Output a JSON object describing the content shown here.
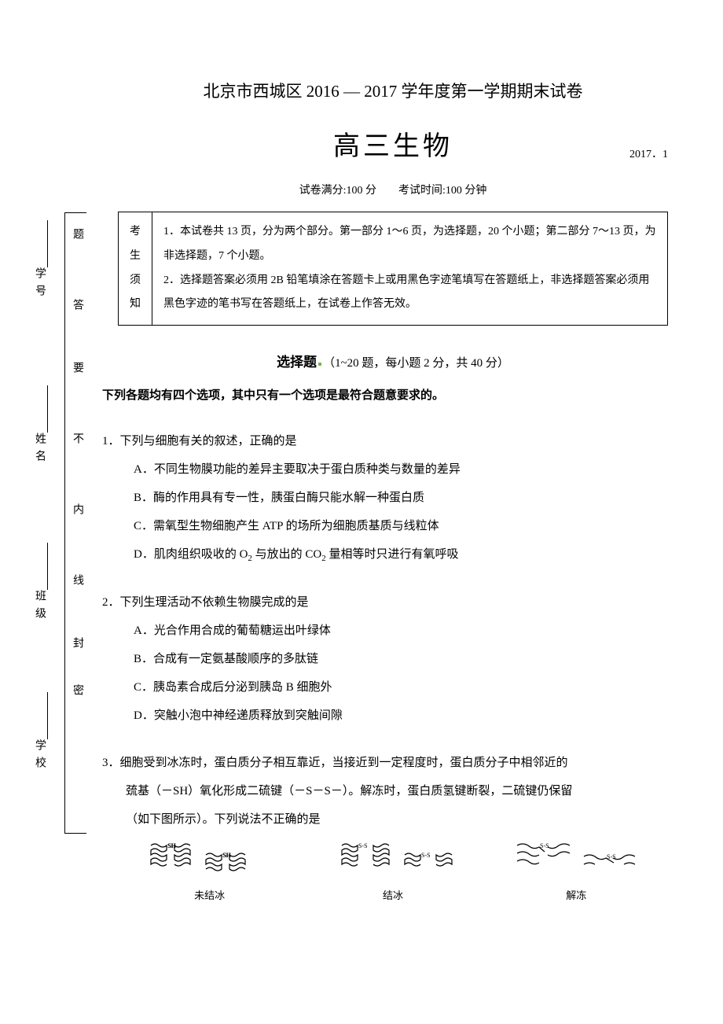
{
  "header": {
    "title": "北京市西城区 2016 — 2017 学年度第一学期期末试卷",
    "subtitle": "高三生物",
    "date": "2017．1",
    "meta": "试卷满分:100 分　　考试时间:100 分钟"
  },
  "notice": {
    "label": "考生须知",
    "line1": "1．本试卷共 13 页，分为两个部分。第一部分 1～6 页，为选择题，20 个小题；第二部分 7～13 页，为非选择题，7 个小题。",
    "line2": "2．选择题答案必须用 2B 铅笔填涂在答题卡上或用黑色字迹笔填写在答题纸上，非选择题答案必须用黑色字迹的笔书写在答题纸上，在试卷上作答无效。"
  },
  "section": {
    "title_bold": "选择题",
    "title_rest": "（1~20 题，每小题 2 分，共 40 分）",
    "instruction": "下列各题均有四个选项，其中只有一个选项是最符合题意要求的。"
  },
  "sidebar": {
    "col1": {
      "a": "学号",
      "b": "姓名",
      "c": "班级",
      "d": "学校"
    },
    "col2": {
      "a": "题",
      "b": "答",
      "c": "要",
      "d": "不",
      "e": "内",
      "f": "线",
      "g": "封",
      "h": "密"
    }
  },
  "q1": {
    "stem": "1．下列与细胞有关的叙述，正确的是",
    "a": "A．不同生物膜功能的差异主要取决于蛋白质种类与数量的差异",
    "b": "B．酶的作用具有专一性，胰蛋白酶只能水解一种蛋白质",
    "c": "C．需氧型生物细胞产生 ATP 的场所为细胞质基质与线粒体",
    "d_pre": "D．肌肉组织吸收的 O",
    "d_mid": " 与放出的 CO",
    "d_post": " 量相等时只进行有氧呼吸"
  },
  "q2": {
    "stem": "2．下列生理活动不依赖生物膜完成的是",
    "a": "A．光合作用合成的葡萄糖运出叶绿体",
    "b": "B．合成有一定氨基酸顺序的多肽链",
    "c": "C．胰岛素合成后分泌到胰岛 B 细胞外",
    "d": "D．突触小泡中神经递质释放到突触间隙"
  },
  "q3": {
    "stem1": "3．细胞受到冰冻时，蛋白质分子相互靠近，当接近到一定程度时，蛋白质分子中相邻近的",
    "stem2": "巯基（－SH）氧化形成二硫键（－S－S－）。解冻时，蛋白质氢键断裂，二硫键仍保留",
    "stem3": "（如下图所示）。下列说法不正确的是",
    "labels": {
      "a": "未结冰",
      "b": "结冰",
      "c": "解冻"
    },
    "sh": "SH",
    "ss": "S-S"
  },
  "colors": {
    "text": "#000000",
    "bg": "#ffffff",
    "accent": "#7cb342"
  }
}
